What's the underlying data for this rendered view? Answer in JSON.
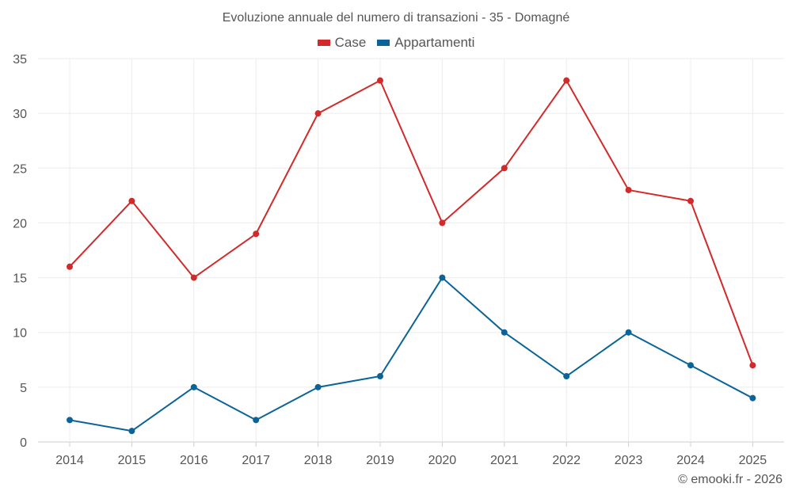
{
  "chart_data": {
    "type": "line",
    "title": "Evoluzione annuale del numero di transazioni - 35 - Domagné",
    "xlabel": "",
    "ylabel": "",
    "categories": [
      "2014",
      "2015",
      "2016",
      "2017",
      "2018",
      "2019",
      "2020",
      "2021",
      "2022",
      "2023",
      "2024",
      "2025"
    ],
    "series": [
      {
        "name": "Case",
        "color": "#d22a2a",
        "values": [
          16,
          22,
          15,
          19,
          30,
          33,
          20,
          25,
          33,
          23,
          22,
          7
        ]
      },
      {
        "name": "Appartamenti",
        "color": "#0b6498",
        "values": [
          2,
          1,
          5,
          2,
          5,
          6,
          15,
          10,
          6,
          10,
          7,
          4
        ]
      }
    ],
    "ylim": [
      0,
      35
    ],
    "yticks": [
      0,
      5,
      10,
      15,
      20,
      25,
      30,
      35
    ],
    "grid": true,
    "legend_position": "top-center"
  },
  "credit": "© emooki.fr - 2026"
}
